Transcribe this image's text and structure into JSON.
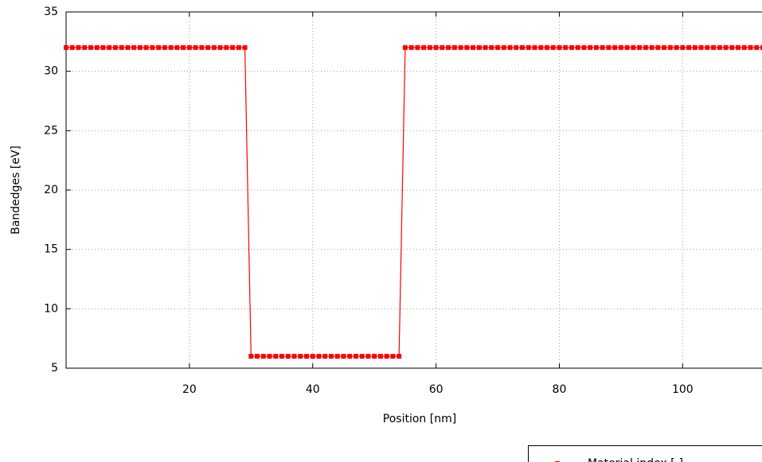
{
  "chart_data": {
    "type": "line",
    "x_label": "Position [nm]",
    "y_label": "Bandedges [eV]",
    "x": [
      0,
      1,
      2,
      3,
      4,
      5,
      6,
      7,
      8,
      9,
      10,
      11,
      12,
      13,
      14,
      15,
      16,
      17,
      18,
      19,
      20,
      21,
      22,
      23,
      24,
      25,
      26,
      27,
      28,
      29,
      30,
      31,
      32,
      33,
      34,
      35,
      36,
      37,
      38,
      39,
      40,
      41,
      42,
      43,
      44,
      45,
      46,
      47,
      48,
      49,
      50,
      51,
      52,
      53,
      54,
      55,
      56,
      57,
      58,
      59,
      60,
      61,
      62,
      63,
      64,
      65,
      66,
      67,
      68,
      69,
      70,
      71,
      72,
      73,
      74,
      75,
      76,
      77,
      78,
      79,
      80,
      81,
      82,
      83,
      84,
      85,
      86,
      87,
      88,
      89,
      90,
      91,
      92,
      93,
      94,
      95,
      96,
      97,
      98,
      99,
      100,
      101,
      102,
      103,
      104,
      105,
      106,
      107,
      108,
      109,
      110,
      111,
      112,
      113
    ],
    "series": [
      {
        "name": "Material index [-]",
        "color": "#ff0000",
        "values": [
          32,
          32,
          32,
          32,
          32,
          32,
          32,
          32,
          32,
          32,
          32,
          32,
          32,
          32,
          32,
          32,
          32,
          32,
          32,
          32,
          32,
          32,
          32,
          32,
          32,
          32,
          32,
          32,
          32,
          32,
          6,
          6,
          6,
          6,
          6,
          6,
          6,
          6,
          6,
          6,
          6,
          6,
          6,
          6,
          6,
          6,
          6,
          6,
          6,
          6,
          6,
          6,
          6,
          6,
          6,
          32,
          32,
          32,
          32,
          32,
          32,
          32,
          32,
          32,
          32,
          32,
          32,
          32,
          32,
          32,
          32,
          32,
          32,
          32,
          32,
          32,
          32,
          32,
          32,
          32,
          32,
          32,
          32,
          32,
          32,
          32,
          32,
          32,
          32,
          32,
          32,
          32,
          32,
          32,
          32,
          32,
          32,
          32,
          32,
          32,
          32,
          32,
          32,
          32,
          32,
          32,
          32,
          32,
          32,
          32,
          32,
          32,
          32,
          32
        ]
      }
    ],
    "xlim": [
      0,
      113
    ],
    "ylim": [
      5,
      35
    ],
    "xticks": [
      20,
      40,
      60,
      80,
      100
    ],
    "yticks": [
      5,
      10,
      15,
      20,
      25,
      30,
      35
    ],
    "grid": true,
    "legend": "bottom-right"
  }
}
